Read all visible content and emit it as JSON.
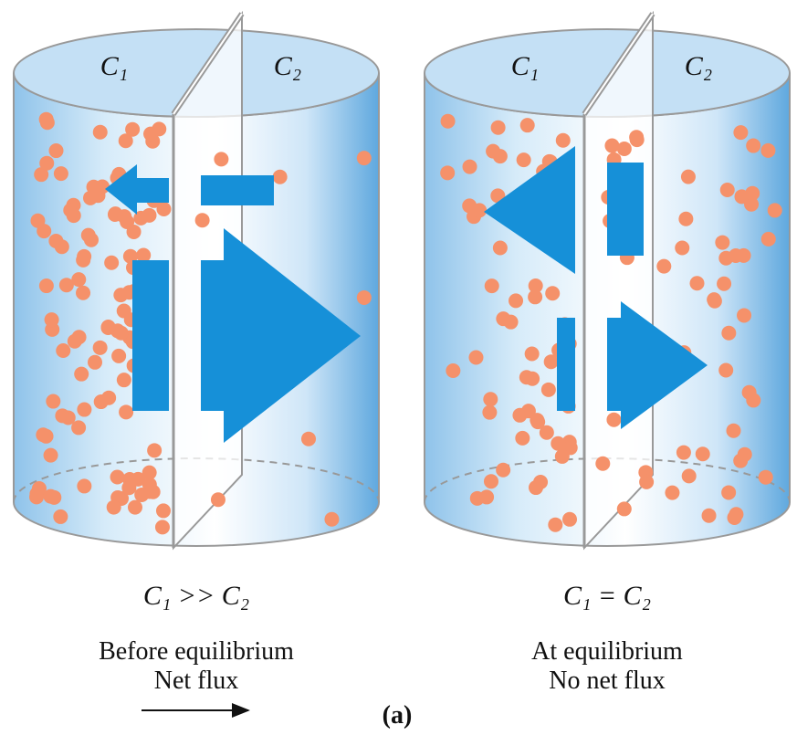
{
  "panels": [
    {
      "top_labels": [
        "C₁",
        "C₂"
      ],
      "relation": "C₁ >> C₂",
      "state": "Before equilibrium",
      "flux": "Net flux"
    },
    {
      "top_labels": [
        "C₁",
        "C₂"
      ],
      "relation": "C₁ = C₂",
      "state": "At equilibrium",
      "flux": "No net flux"
    }
  ],
  "caption": "(a)"
}
